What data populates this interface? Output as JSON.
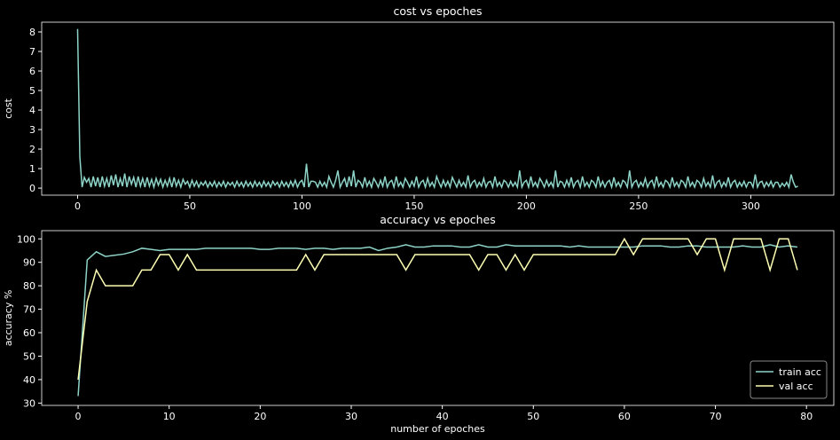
{
  "chart_data": [
    {
      "type": "line",
      "title": "cost vs epoches",
      "y_label": "cost",
      "xlim": [
        -16,
        337
      ],
      "xticks": [
        0,
        50,
        100,
        150,
        200,
        250,
        300
      ],
      "ylim": [
        -0.36,
        8.5
      ],
      "yticks": [
        0,
        1,
        2,
        3,
        4,
        5,
        6,
        7,
        8
      ],
      "series": [
        {
          "color": "#8dd3c7",
          "values": [
            8.15,
            1.6,
            0.05,
            0.55,
            0.3,
            0.5,
            0.05,
            0.6,
            0.1,
            0.55,
            0.05,
            0.6,
            0.1,
            0.5,
            0.05,
            0.65,
            0.15,
            0.7,
            0.05,
            0.5,
            0.1,
            0.75,
            0.05,
            0.6,
            0.2,
            0.55,
            0.05,
            0.6,
            0.1,
            0.5,
            0.05,
            0.55,
            0.1,
            0.45,
            0.05,
            0.5,
            0.15,
            0.45,
            0.05,
            0.4,
            0.1,
            0.5,
            0.05,
            0.55,
            0.1,
            0.4,
            0.05,
            0.45,
            0.2,
            0.35,
            0.05,
            0.4,
            0.1,
            0.35,
            0.05,
            0.3,
            0.15,
            0.35,
            0.05,
            0.3,
            0.1,
            0.35,
            0.05,
            0.3,
            0.1,
            0.35,
            0.05,
            0.3,
            0.15,
            0.3,
            0.05,
            0.35,
            0.1,
            0.3,
            0.05,
            0.35,
            0.1,
            0.3,
            0.05,
            0.35,
            0.1,
            0.3,
            0.05,
            0.35,
            0.1,
            0.3,
            0.05,
            0.35,
            0.15,
            0.3,
            0.05,
            0.35,
            0.1,
            0.3,
            0.05,
            0.35,
            0.1,
            0.4,
            0.05,
            0.3,
            0.4,
            0.05,
            1.25,
            0.05,
            0.35,
            0.35,
            0.3,
            0.05,
            0.35,
            0.1,
            0.3,
            0.05,
            0.6,
            0.3,
            0.05,
            0.4,
            0.9,
            0.05,
            0.3,
            0.5,
            0.05,
            0.6,
            0.1,
            0.9,
            0.05,
            0.4,
            0.3,
            0.05,
            0.55,
            0.1,
            0.35,
            0.05,
            0.5,
            0.3,
            0.05,
            0.4,
            0.1,
            0.6,
            0.05,
            0.3,
            0.4,
            0.05,
            0.6,
            0.1,
            0.3,
            0.05,
            0.5,
            0.3,
            0.05,
            0.35,
            0.1,
            0.6,
            0.05,
            0.3,
            0.4,
            0.05,
            0.5,
            0.1,
            0.3,
            0.05,
            0.6,
            0.3,
            0.05,
            0.4,
            0.1,
            0.35,
            0.05,
            0.55,
            0.3,
            0.05,
            0.4,
            0.1,
            0.3,
            0.05,
            0.65,
            0.05,
            0.3,
            0.4,
            0.05,
            0.3,
            0.1,
            0.5,
            0.05,
            0.3,
            0.35,
            0.05,
            0.6,
            0.1,
            0.3,
            0.05,
            0.4,
            0.3,
            0.05,
            0.35,
            0.1,
            0.3,
            0.05,
            0.9,
            0.05,
            0.3,
            0.4,
            0.05,
            0.6,
            0.1,
            0.3,
            0.05,
            0.5,
            0.3,
            0.05,
            0.4,
            0.1,
            0.3,
            0.05,
            0.9,
            0.05,
            0.35,
            0.3,
            0.05,
            0.4,
            0.1,
            0.55,
            0.05,
            0.3,
            0.4,
            0.05,
            0.6,
            0.1,
            0.3,
            0.05,
            0.4,
            0.3,
            0.05,
            0.6,
            0.1,
            0.35,
            0.05,
            0.3,
            0.4,
            0.05,
            0.55,
            0.1,
            0.3,
            0.05,
            0.4,
            0.3,
            0.05,
            0.9,
            0.05,
            0.3,
            0.4,
            0.05,
            0.3,
            0.1,
            0.5,
            0.05,
            0.3,
            0.4,
            0.05,
            0.6,
            0.1,
            0.3,
            0.05,
            0.4,
            0.3,
            0.05,
            0.55,
            0.1,
            0.3,
            0.05,
            0.4,
            0.3,
            0.05,
            0.6,
            0.1,
            0.3,
            0.05,
            0.4,
            0.3,
            0.05,
            0.5,
            0.1,
            0.3,
            0.05,
            0.65,
            0.05,
            0.3,
            0.4,
            0.05,
            0.3,
            0.1,
            0.55,
            0.05,
            0.3,
            0.4,
            0.05,
            0.3,
            0.1,
            0.35,
            0.05,
            0.3,
            0.3,
            0.05,
            0.7,
            0.05,
            0.3,
            0.35,
            0.05,
            0.3,
            0.1,
            0.35,
            0.05,
            0.3,
            0.3,
            0.05,
            0.25,
            0.1,
            0.3,
            0.05,
            0.7,
            0.3,
            0.05,
            0.1
          ]
        }
      ]
    },
    {
      "type": "line",
      "title": "accuracy vs epoches",
      "x_label": "number of epoches",
      "y_label": "accuracy %",
      "xlim": [
        -4,
        83
      ],
      "xticks": [
        0,
        10,
        20,
        30,
        40,
        50,
        60,
        70,
        80
      ],
      "ylim": [
        29,
        103.5
      ],
      "yticks": [
        30,
        40,
        50,
        60,
        70,
        80,
        90,
        100
      ],
      "legend": "lower right",
      "series": [
        {
          "name": "train acc",
          "color": "#8dd3c7",
          "values": [
            33,
            91,
            94.5,
            92.5,
            93,
            93.5,
            94.5,
            96,
            95.5,
            95,
            95.5,
            95.5,
            95.5,
            95.5,
            96,
            96,
            96,
            96,
            96,
            96,
            95.5,
            95.5,
            96,
            96,
            96,
            95.5,
            96,
            96,
            95.5,
            96,
            96,
            96,
            96.5,
            95,
            96,
            96.5,
            97.5,
            96.5,
            96.5,
            97,
            97,
            97,
            96.5,
            96.5,
            97.5,
            96.5,
            96.5,
            97.5,
            97,
            97,
            97,
            97,
            97,
            97,
            96.5,
            97,
            96.5,
            96.5,
            96.5,
            96.5,
            96.5,
            96.5,
            97,
            97,
            97,
            96.5,
            96.5,
            97,
            97,
            96.5,
            96.5,
            96.5,
            96.5,
            97,
            96.5,
            96.5,
            97.5,
            96.5,
            97,
            96.5
          ]
        },
        {
          "name": "val acc",
          "color": "#feffb3",
          "values": [
            40,
            73.3,
            86.7,
            80,
            80,
            80,
            80,
            86.7,
            86.7,
            93.3,
            93.3,
            86.7,
            93.3,
            86.7,
            86.7,
            86.7,
            86.7,
            86.7,
            86.7,
            86.7,
            86.7,
            86.7,
            86.7,
            86.7,
            86.7,
            93.3,
            86.7,
            93.3,
            93.3,
            93.3,
            93.3,
            93.3,
            93.3,
            93.3,
            93.3,
            93.3,
            86.7,
            93.3,
            93.3,
            93.3,
            93.3,
            93.3,
            93.3,
            93.3,
            86.7,
            93.3,
            93.3,
            86.7,
            93.3,
            86.7,
            93.3,
            93.3,
            93.3,
            93.3,
            93.3,
            93.3,
            93.3,
            93.3,
            93.3,
            93.3,
            100,
            93.3,
            100,
            100,
            100,
            100,
            100,
            100,
            93.3,
            100,
            100,
            86.7,
            100,
            100,
            100,
            100,
            86.7,
            100,
            100,
            86.7
          ]
        }
      ]
    }
  ]
}
